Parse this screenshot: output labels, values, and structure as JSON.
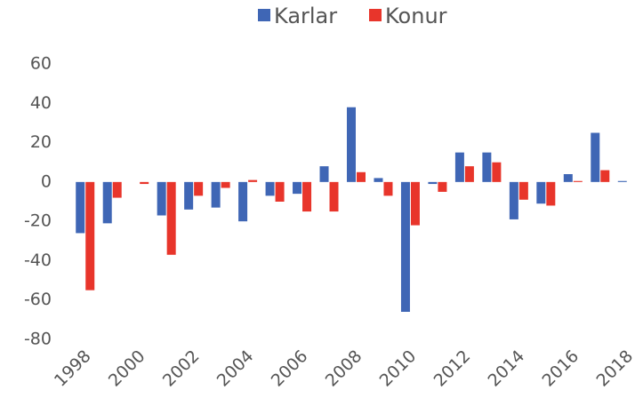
{
  "chart_data": {
    "type": "bar",
    "categories": [
      "1998",
      null,
      "2000",
      null,
      "2002",
      null,
      "2004",
      null,
      "2006",
      null,
      "2008",
      null,
      "2010",
      null,
      "2012",
      null,
      "2014",
      null,
      "2016",
      null,
      "2018"
    ],
    "series": [
      {
        "name": "Karlar",
        "color": "#3f66b5",
        "values": [
          -26,
          -21,
          0,
          -17,
          -14,
          -13,
          -20,
          -7,
          -6,
          8,
          38,
          2,
          -66,
          -1,
          15,
          15,
          -19,
          -11,
          4,
          25,
          0.5
        ]
      },
      {
        "name": "Konur",
        "color": "#e8352b",
        "values": [
          -55,
          -8,
          -1,
          -37,
          -7,
          -3,
          1,
          -10,
          -15,
          -15,
          5,
          -7,
          -22,
          -5,
          8,
          10,
          -9,
          -12,
          0.5,
          6,
          0
        ]
      }
    ],
    "ylim": [
      -80,
      60
    ],
    "yticks": [
      -80,
      -60,
      -40,
      -20,
      0,
      20,
      40,
      60
    ],
    "grid": false,
    "legend": "top"
  }
}
